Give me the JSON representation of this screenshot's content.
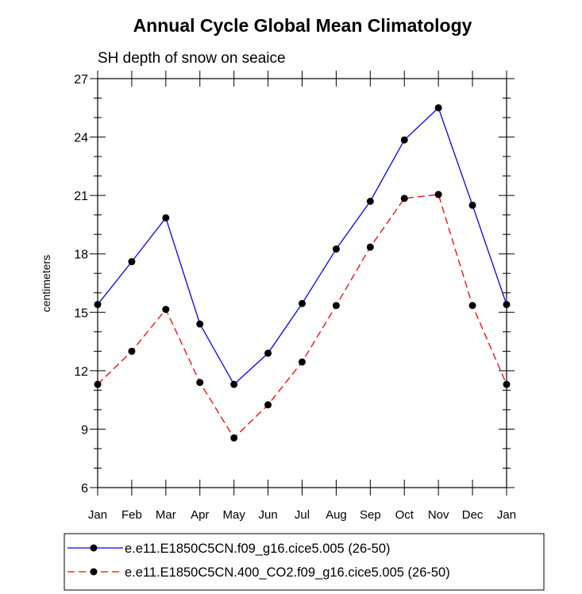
{
  "chart_data": {
    "type": "line",
    "title": "Annual Cycle Global Mean Climatology",
    "subtitle": "SH depth of snow on seaice",
    "xlabel": "",
    "ylabel": "centimeters",
    "ylim": [
      6,
      27
    ],
    "yticks": [
      6,
      9,
      12,
      15,
      18,
      21,
      24,
      27
    ],
    "categories": [
      "Jan",
      "Feb",
      "Mar",
      "Apr",
      "May",
      "Jun",
      "Jul",
      "Aug",
      "Sep",
      "Oct",
      "Nov",
      "Dec",
      "Jan"
    ],
    "grid": false,
    "legend_position": "bottom",
    "series": [
      {
        "name": "e.e11.E1850C5CN.f09_g16.cice5.005 (26-50)",
        "color": "#0000ff",
        "dash": "solid",
        "values": [
          15.4,
          17.6,
          19.85,
          14.4,
          11.3,
          12.9,
          15.45,
          18.25,
          20.7,
          23.85,
          25.5,
          20.5,
          15.4
        ]
      },
      {
        "name": "e.e11.E1850C5CN.400_CO2.f09_g16.cice5.005 (26-50)",
        "color": "#ff0000",
        "dash": "dashed",
        "values": [
          11.3,
          13.0,
          15.15,
          11.4,
          8.55,
          10.25,
          12.45,
          15.35,
          18.35,
          20.85,
          21.05,
          15.35,
          11.3
        ]
      }
    ]
  }
}
